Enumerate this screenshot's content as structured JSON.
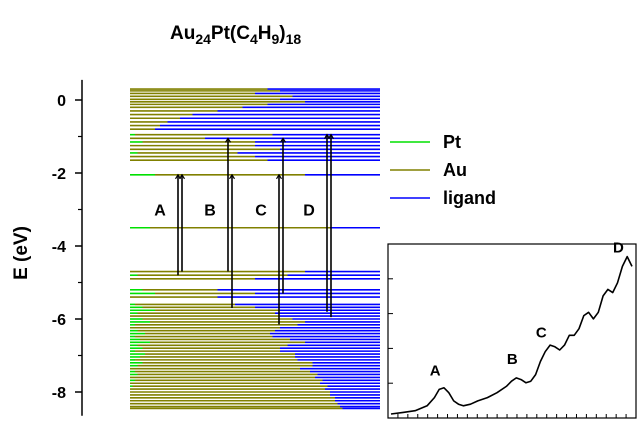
{
  "chart_data": [
    {
      "type": "energy-level-diagram",
      "title": {
        "base1": "Au",
        "sub1": "24",
        "base2": "Pt(C",
        "sub2": "4",
        "base3": "H",
        "sub3": "9",
        "base4": ")",
        "sub4": "18"
      },
      "ylabel": "E (eV)",
      "ylim": [
        -8.5,
        0.4
      ],
      "yticks": [
        0,
        -2,
        -4,
        -6,
        -8
      ],
      "ytick_labels": [
        "0",
        "-2",
        "-4",
        "-6",
        "-8"
      ],
      "legend": [
        {
          "name": "Pt",
          "color": "#00e000"
        },
        {
          "name": "Au",
          "color": "#808000"
        },
        {
          "name": "ligand",
          "color": "#0000ff"
        }
      ],
      "levels": [
        {
          "e": 0.3,
          "pt": 0.0,
          "au": 0.55
        },
        {
          "e": 0.25,
          "pt": 0.0,
          "au": 0.6
        },
        {
          "e": 0.18,
          "pt": 0.0,
          "au": 0.5
        },
        {
          "e": 0.1,
          "pt": 0.0,
          "au": 0.65
        },
        {
          "e": 0.02,
          "pt": 0.0,
          "au": 0.6
        },
        {
          "e": -0.05,
          "pt": 0.0,
          "au": 0.7
        },
        {
          "e": -0.12,
          "pt": 0.0,
          "au": 0.55
        },
        {
          "e": -0.2,
          "pt": 0.0,
          "au": 0.45
        },
        {
          "e": -0.3,
          "pt": 0.0,
          "au": 0.35
        },
        {
          "e": -0.4,
          "pt": 0.0,
          "au": 0.25
        },
        {
          "e": -0.5,
          "pt": 0.0,
          "au": 0.2
        },
        {
          "e": -0.6,
          "pt": 0.0,
          "au": 0.15
        },
        {
          "e": -0.7,
          "pt": 0.0,
          "au": 0.12
        },
        {
          "e": -0.8,
          "pt": 0.0,
          "au": 0.1
        },
        {
          "e": -0.95,
          "pt": 0.02,
          "au": 0.55
        },
        {
          "e": -1.05,
          "pt": 0.0,
          "au": 0.3
        },
        {
          "e": -1.15,
          "pt": 0.05,
          "au": 0.45
        },
        {
          "e": -1.25,
          "pt": 0.0,
          "au": 0.5
        },
        {
          "e": -1.35,
          "pt": 0.0,
          "au": 0.6
        },
        {
          "e": -1.45,
          "pt": 0.03,
          "au": 0.4
        },
        {
          "e": -1.55,
          "pt": 0.0,
          "au": 0.5
        },
        {
          "e": -1.65,
          "pt": 0.0,
          "au": 0.55
        },
        {
          "e": -2.05,
          "pt": 0.1,
          "au": 0.6
        },
        {
          "e": -3.5,
          "pt": 0.08,
          "au": 0.72
        },
        {
          "e": -4.7,
          "pt": 0.0,
          "au": 0.7
        },
        {
          "e": -4.8,
          "pt": 0.03,
          "au": 0.6
        },
        {
          "e": -4.9,
          "pt": 0.0,
          "au": 0.5
        },
        {
          "e": -5.2,
          "pt": 0.05,
          "au": 0.3
        },
        {
          "e": -5.3,
          "pt": 0.1,
          "au": 0.4
        },
        {
          "e": -5.4,
          "pt": 0.0,
          "au": 0.35
        },
        {
          "e": -5.6,
          "pt": 0.02,
          "au": 0.4
        },
        {
          "e": -5.68,
          "pt": 0.05,
          "au": 0.45
        },
        {
          "e": -5.76,
          "pt": 0.1,
          "au": 0.5
        },
        {
          "e": -5.84,
          "pt": 0.03,
          "au": 0.55
        },
        {
          "e": -5.92,
          "pt": 0.0,
          "au": 0.6
        },
        {
          "e": -6.0,
          "pt": 0.05,
          "au": 0.6
        },
        {
          "e": -6.08,
          "pt": 0.08,
          "au": 0.62
        },
        {
          "e": -6.16,
          "pt": 0.02,
          "au": 0.65
        },
        {
          "e": -6.24,
          "pt": 0.0,
          "au": 0.6
        },
        {
          "e": -6.32,
          "pt": 0.03,
          "au": 0.55
        },
        {
          "e": -6.4,
          "pt": 0.06,
          "au": 0.5
        },
        {
          "e": -6.48,
          "pt": 0.02,
          "au": 0.55
        },
        {
          "e": -6.56,
          "pt": 0.04,
          "au": 0.6
        },
        {
          "e": -6.64,
          "pt": 0.08,
          "au": 0.62
        },
        {
          "e": -6.72,
          "pt": 0.03,
          "au": 0.6
        },
        {
          "e": -6.8,
          "pt": 0.05,
          "au": 0.55
        },
        {
          "e": -6.88,
          "pt": 0.02,
          "au": 0.58
        },
        {
          "e": -6.96,
          "pt": 0.06,
          "au": 0.6
        },
        {
          "e": -7.04,
          "pt": 0.04,
          "au": 0.62
        },
        {
          "e": -7.12,
          "pt": 0.02,
          "au": 0.65
        },
        {
          "e": -7.2,
          "pt": 0.05,
          "au": 0.68
        },
        {
          "e": -7.28,
          "pt": 0.03,
          "au": 0.7
        },
        {
          "e": -7.36,
          "pt": 0.0,
          "au": 0.68
        },
        {
          "e": -7.44,
          "pt": 0.02,
          "au": 0.7
        },
        {
          "e": -7.52,
          "pt": 0.03,
          "au": 0.72
        },
        {
          "e": -7.6,
          "pt": 0.0,
          "au": 0.74
        },
        {
          "e": -7.68,
          "pt": 0.02,
          "au": 0.75
        },
        {
          "e": -7.76,
          "pt": 0.0,
          "au": 0.76
        },
        {
          "e": -7.84,
          "pt": 0.01,
          "au": 0.78
        },
        {
          "e": -7.92,
          "pt": 0.0,
          "au": 0.78
        },
        {
          "e": -8.0,
          "pt": 0.0,
          "au": 0.8
        },
        {
          "e": -8.08,
          "pt": 0.0,
          "au": 0.8
        },
        {
          "e": -8.16,
          "pt": 0.0,
          "au": 0.82
        },
        {
          "e": -8.24,
          "pt": 0.0,
          "au": 0.82
        },
        {
          "e": -8.32,
          "pt": 0.0,
          "au": 0.83
        },
        {
          "e": -8.4,
          "pt": 0.0,
          "au": 0.84
        },
        {
          "e": -8.45,
          "pt": 0.0,
          "au": 0.85
        }
      ],
      "transitions": [
        {
          "label": "A",
          "lines": [
            {
              "from": -4.8,
              "to": -2.05
            },
            {
              "from": -4.7,
              "to": -2.05
            }
          ]
        },
        {
          "label": "B",
          "lines": [
            {
              "from": -4.7,
              "to": -1.05
            },
            {
              "from": -5.7,
              "to": -2.05
            }
          ]
        },
        {
          "label": "C",
          "lines": [
            {
              "from": -6.15,
              "to": -2.05
            },
            {
              "from": -5.3,
              "to": -1.05
            }
          ]
        },
        {
          "label": "D",
          "lines": [
            {
              "from": -5.8,
              "to": -0.95
            },
            {
              "from": -5.95,
              "to": -0.95
            }
          ]
        }
      ]
    },
    {
      "type": "line",
      "title": "",
      "xlabel": "",
      "ylabel": "",
      "x": [
        0,
        0.05,
        0.1,
        0.15,
        0.18,
        0.2,
        0.22,
        0.24,
        0.26,
        0.28,
        0.3,
        0.33,
        0.36,
        0.4,
        0.44,
        0.48,
        0.5,
        0.52,
        0.54,
        0.56,
        0.58,
        0.6,
        0.62,
        0.64,
        0.66,
        0.68,
        0.7,
        0.72,
        0.74,
        0.76,
        0.78,
        0.8,
        0.82,
        0.84,
        0.86,
        0.88,
        0.9,
        0.92,
        0.94,
        0.96,
        0.98,
        1.0
      ],
      "values": [
        0.0,
        0.01,
        0.02,
        0.05,
        0.1,
        0.15,
        0.16,
        0.13,
        0.08,
        0.06,
        0.05,
        0.06,
        0.08,
        0.1,
        0.13,
        0.17,
        0.2,
        0.22,
        0.21,
        0.19,
        0.2,
        0.24,
        0.32,
        0.38,
        0.42,
        0.41,
        0.39,
        0.42,
        0.48,
        0.48,
        0.52,
        0.6,
        0.62,
        0.58,
        0.62,
        0.72,
        0.76,
        0.74,
        0.8,
        0.9,
        0.96,
        0.9
      ],
      "peak_labels": [
        {
          "label": "A",
          "x": 0.2
        },
        {
          "label": "B",
          "x": 0.52
        },
        {
          "label": "C",
          "x": 0.64
        },
        {
          "label": "D",
          "x": 0.96
        }
      ],
      "xticks": 25,
      "yticks": 5
    }
  ]
}
